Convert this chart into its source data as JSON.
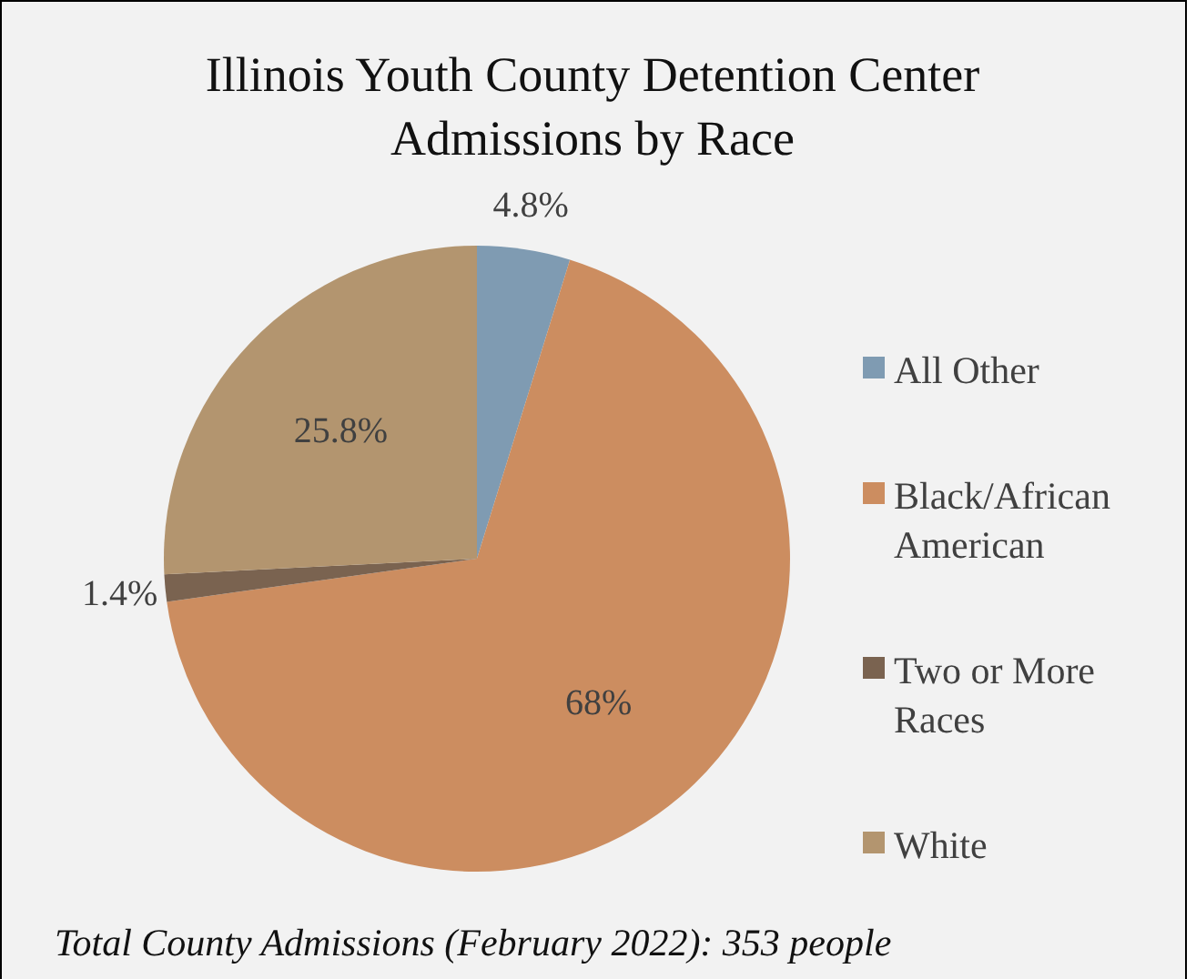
{
  "chart_data": {
    "type": "pie",
    "title": "Illinois Youth County Detention Center Admissions by Race",
    "categories": [
      "All Other",
      "Black/African American",
      "Two or More Races",
      "White"
    ],
    "values": [
      4.8,
      68,
      1.4,
      25.8
    ],
    "colors": [
      "#7f9bb2",
      "#cc8d60",
      "#7a6350",
      "#b3956f"
    ],
    "value_labels": [
      "4.8%",
      "68%",
      "1.4%",
      "25.8%"
    ],
    "legend": "right",
    "annotations": [
      "Total County Admissions (February 2022): 353 people"
    ]
  }
}
